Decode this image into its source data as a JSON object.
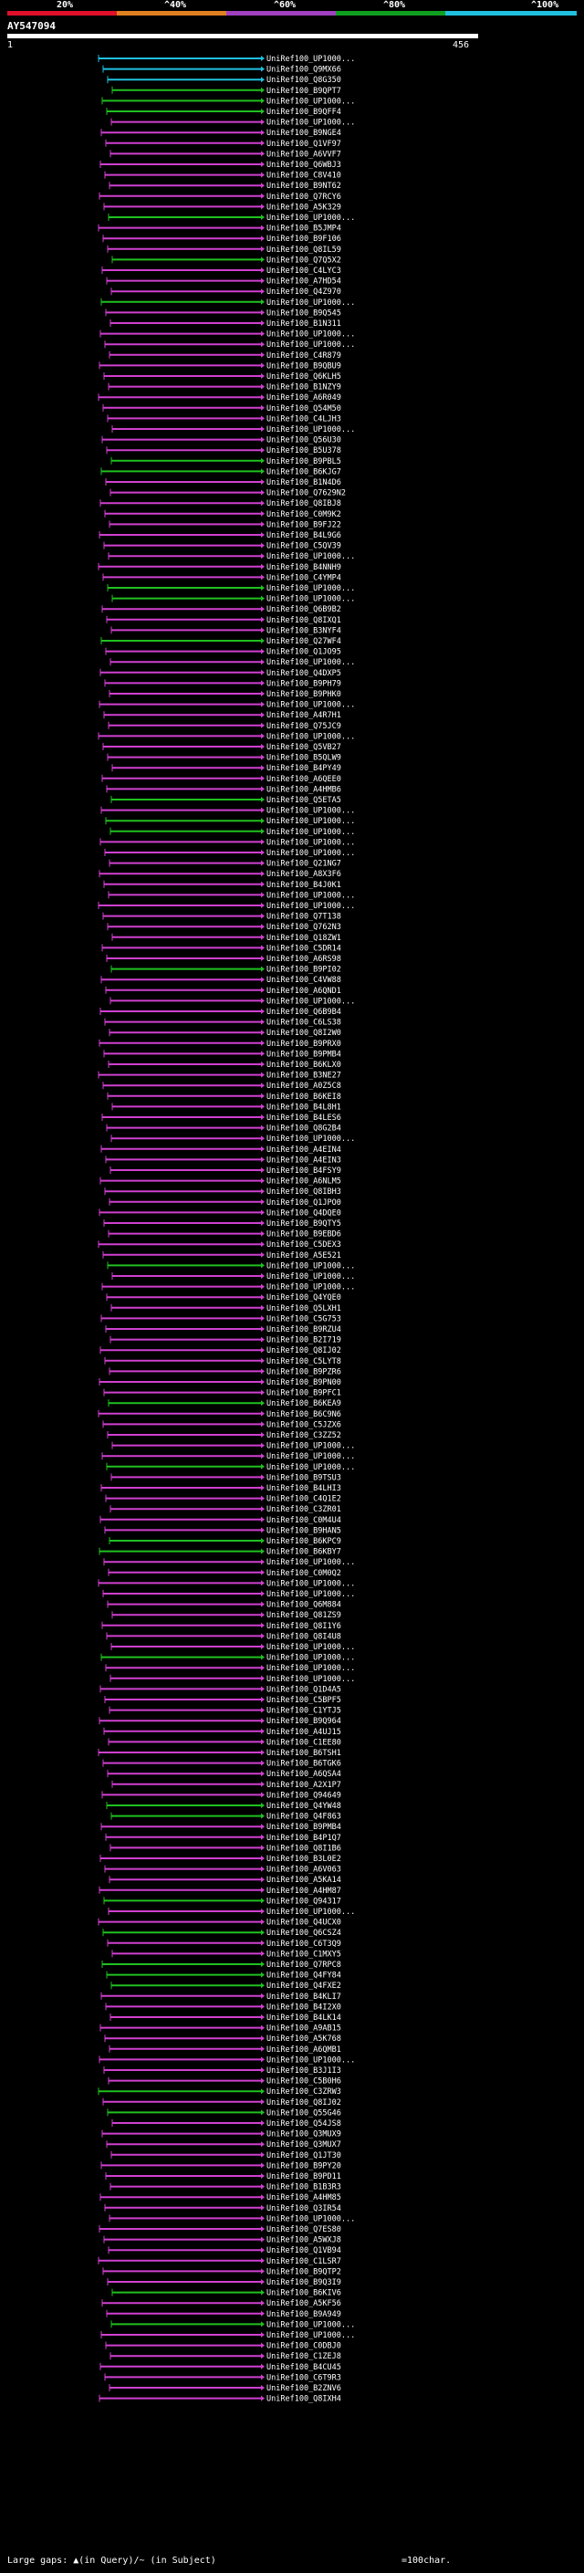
{
  "scale": {
    "ticks": [
      "20%",
      "^40%",
      "^60%",
      "^80%",
      "^100%"
    ],
    "colors": [
      "#e0102a",
      "#e08020",
      "#a040c0",
      "#10a020",
      "#20c0e0"
    ]
  },
  "query": {
    "title": "AY547094",
    "start": "1",
    "end": "456"
  },
  "footer": {
    "note": "Large gaps: ▲(in Query)/~ (in Subject)",
    "legend": "=100char."
  },
  "colors": {
    "green": "#20c020",
    "magenta": "#d040d0",
    "cyan": "#20c0e0"
  },
  "hits": [
    {
      "label": "UniRef100_UP1000...",
      "color": "cyan"
    },
    {
      "label": "UniRef100_Q9MX66",
      "color": "cyan"
    },
    {
      "label": "UniRef100_Q8G350",
      "color": "cyan"
    },
    {
      "label": "UniRef100_B9QPT7",
      "color": "green"
    },
    {
      "label": "UniRef100_UP1000...",
      "color": "green"
    },
    {
      "label": "UniRef100_B9QFF4",
      "color": "green"
    },
    {
      "label": "UniRef100_UP1000...",
      "color": "magenta"
    },
    {
      "label": "UniRef100_B9NGE4",
      "color": "magenta"
    },
    {
      "label": "UniRef100_Q1VF97",
      "color": "magenta"
    },
    {
      "label": "UniRef100_A6VVF7",
      "color": "magenta"
    },
    {
      "label": "UniRef100_Q6WBJ3",
      "color": "magenta"
    },
    {
      "label": "UniRef100_C8V410",
      "color": "magenta"
    },
    {
      "label": "UniRef100_B9NT62",
      "color": "magenta"
    },
    {
      "label": "UniRef100_Q7RCY6",
      "color": "magenta"
    },
    {
      "label": "UniRef100_A5K329",
      "color": "magenta"
    },
    {
      "label": "UniRef100_UP1000...",
      "color": "green"
    },
    {
      "label": "UniRef100_B5JMP4",
      "color": "magenta"
    },
    {
      "label": "UniRef100_B9F106",
      "color": "magenta"
    },
    {
      "label": "UniRef100_Q8IL59",
      "color": "magenta"
    },
    {
      "label": "UniRef100_Q7Q5X2",
      "color": "green"
    },
    {
      "label": "UniRef100_C4LYC3",
      "color": "magenta"
    },
    {
      "label": "UniRef100_A7HD54",
      "color": "magenta"
    },
    {
      "label": "UniRef100_Q4Z970",
      "color": "magenta"
    },
    {
      "label": "UniRef100_UP1000...",
      "color": "green"
    },
    {
      "label": "UniRef100_B9Q545",
      "color": "magenta"
    },
    {
      "label": "UniRef100_B1N311",
      "color": "magenta"
    },
    {
      "label": "UniRef100_UP1000...",
      "color": "magenta"
    },
    {
      "label": "UniRef100_UP1000...",
      "color": "magenta"
    },
    {
      "label": "UniRef100_C4R879",
      "color": "magenta"
    },
    {
      "label": "UniRef100_B9QBU9",
      "color": "magenta"
    },
    {
      "label": "UniRef100_Q6KLH5",
      "color": "magenta"
    },
    {
      "label": "UniRef100_B1NZY9",
      "color": "magenta"
    },
    {
      "label": "UniRef100_A6R049",
      "color": "magenta"
    },
    {
      "label": "UniRef100_Q54M50",
      "color": "magenta"
    },
    {
      "label": "UniRef100_C4LJH3",
      "color": "magenta"
    },
    {
      "label": "UniRef100_UP1000...",
      "color": "magenta"
    },
    {
      "label": "UniRef100_Q56U30",
      "color": "magenta"
    },
    {
      "label": "UniRef100_B5U378",
      "color": "magenta"
    },
    {
      "label": "UniRef100_B9PBL5",
      "color": "green"
    },
    {
      "label": "UniRef100_B6KJG7",
      "color": "green"
    },
    {
      "label": "UniRef100_B1N4D6",
      "color": "magenta"
    },
    {
      "label": "UniRef100_Q7629N2",
      "color": "magenta"
    },
    {
      "label": "UniRef100_Q8IBJ8",
      "color": "magenta"
    },
    {
      "label": "UniRef100_C0M9K2",
      "color": "magenta"
    },
    {
      "label": "UniRef100_B9FJ22",
      "color": "magenta"
    },
    {
      "label": "UniRef100_B4L9G6",
      "color": "magenta"
    },
    {
      "label": "UniRef100_C5QV39",
      "color": "magenta"
    },
    {
      "label": "UniRef100_UP1000...",
      "color": "magenta"
    },
    {
      "label": "UniRef100_B4NNH9",
      "color": "magenta"
    },
    {
      "label": "UniRef100_C4YMP4",
      "color": "magenta"
    },
    {
      "label": "UniRef100_UP1000...",
      "color": "green"
    },
    {
      "label": "UniRef100_UP1000...",
      "color": "green"
    },
    {
      "label": "UniRef100_Q6B9B2",
      "color": "magenta"
    },
    {
      "label": "UniRef100_Q8IXQ1",
      "color": "magenta"
    },
    {
      "label": "UniRef100_B3NYF4",
      "color": "magenta"
    },
    {
      "label": "UniRef100_Q27WF4",
      "color": "green"
    },
    {
      "label": "UniRef100_Q1JO95",
      "color": "magenta"
    },
    {
      "label": "UniRef100_UP1000...",
      "color": "magenta"
    },
    {
      "label": "UniRef100_Q4DXP5",
      "color": "magenta"
    },
    {
      "label": "UniRef100_B9PH79",
      "color": "magenta"
    },
    {
      "label": "UniRef100_B9PHK0",
      "color": "magenta"
    },
    {
      "label": "UniRef100_UP1000...",
      "color": "magenta"
    },
    {
      "label": "UniRef100_A4R7H1",
      "color": "magenta"
    },
    {
      "label": "UniRef100_Q75JC9",
      "color": "magenta"
    },
    {
      "label": "UniRef100_UP1000...",
      "color": "magenta"
    },
    {
      "label": "UniRef100_Q5VB27",
      "color": "magenta"
    },
    {
      "label": "UniRef100_B5QLW9",
      "color": "magenta"
    },
    {
      "label": "UniRef100_B4PY49",
      "color": "magenta"
    },
    {
      "label": "UniRef100_A6QEE0",
      "color": "magenta"
    },
    {
      "label": "UniRef100_A4HMB6",
      "color": "magenta"
    },
    {
      "label": "UniRef100_Q5ETA5",
      "color": "green"
    },
    {
      "label": "UniRef100_UP1000...",
      "color": "magenta"
    },
    {
      "label": "UniRef100_UP1000...",
      "color": "green"
    },
    {
      "label": "UniRef100_UP1000...",
      "color": "green"
    },
    {
      "label": "UniRef100_UP1000...",
      "color": "magenta"
    },
    {
      "label": "UniRef100_UP1000...",
      "color": "magenta"
    },
    {
      "label": "UniRef100_Q21NG7",
      "color": "magenta"
    },
    {
      "label": "UniRef100_A8X3F6",
      "color": "magenta"
    },
    {
      "label": "UniRef100_B4J0K1",
      "color": "magenta"
    },
    {
      "label": "UniRef100_UP1000...",
      "color": "magenta"
    },
    {
      "label": "UniRef100_UP1000...",
      "color": "magenta"
    },
    {
      "label": "UniRef100_Q7T138",
      "color": "magenta"
    },
    {
      "label": "UniRef100_Q762N3",
      "color": "magenta"
    },
    {
      "label": "UniRef100_Q18ZW1",
      "color": "magenta"
    },
    {
      "label": "UniRef100_C5DR14",
      "color": "magenta"
    },
    {
      "label": "UniRef100_A6RS98",
      "color": "magenta"
    },
    {
      "label": "UniRef100_B9PI02",
      "color": "green"
    },
    {
      "label": "UniRef100_C4VW88",
      "color": "magenta"
    },
    {
      "label": "UniRef100_A6QND1",
      "color": "magenta"
    },
    {
      "label": "UniRef100_UP1000...",
      "color": "magenta"
    },
    {
      "label": "UniRef100_Q6B9B4",
      "color": "magenta"
    },
    {
      "label": "UniRef100_C6LS38",
      "color": "magenta"
    },
    {
      "label": "UniRef100_Q8I2W0",
      "color": "magenta"
    },
    {
      "label": "UniRef100_B9PRX0",
      "color": "magenta"
    },
    {
      "label": "UniRef100_B9PMB4",
      "color": "magenta"
    },
    {
      "label": "UniRef100_B6KLX0",
      "color": "magenta"
    },
    {
      "label": "UniRef100_B3NE27",
      "color": "magenta"
    },
    {
      "label": "UniRef100_A0Z5C8",
      "color": "magenta"
    },
    {
      "label": "UniRef100_B6KEI8",
      "color": "magenta"
    },
    {
      "label": "UniRef100_B4L8H1",
      "color": "magenta"
    },
    {
      "label": "UniRef100_B4LES6",
      "color": "magenta"
    },
    {
      "label": "UniRef100_Q8G2B4",
      "color": "magenta"
    },
    {
      "label": "UniRef100_UP1000...",
      "color": "magenta"
    },
    {
      "label": "UniRef100_A4EIN4",
      "color": "magenta"
    },
    {
      "label": "UniRef100_A4EIN3",
      "color": "magenta"
    },
    {
      "label": "UniRef100_B4FSY9",
      "color": "magenta"
    },
    {
      "label": "UniRef100_A6NLM5",
      "color": "magenta"
    },
    {
      "label": "UniRef100_Q8IBH3",
      "color": "magenta"
    },
    {
      "label": "UniRef100_Q1JPO0",
      "color": "magenta"
    },
    {
      "label": "UniRef100_Q4DQE0",
      "color": "magenta"
    },
    {
      "label": "UniRef100_B9QTY5",
      "color": "magenta"
    },
    {
      "label": "UniRef100_B9EBD6",
      "color": "magenta"
    },
    {
      "label": "UniRef100_C5DEX3",
      "color": "magenta"
    },
    {
      "label": "UniRef100_A5E521",
      "color": "magenta"
    },
    {
      "label": "UniRef100_UP1000...",
      "color": "green"
    },
    {
      "label": "UniRef100_UP1000...",
      "color": "magenta"
    },
    {
      "label": "UniRef100_UP1000...",
      "color": "magenta"
    },
    {
      "label": "UniRef100_Q4YQE0",
      "color": "magenta"
    },
    {
      "label": "UniRef100_Q5LXH1",
      "color": "magenta"
    },
    {
      "label": "UniRef100_C5G753",
      "color": "magenta"
    },
    {
      "label": "UniRef100_B9RZU4",
      "color": "magenta"
    },
    {
      "label": "UniRef100_B2I719",
      "color": "magenta"
    },
    {
      "label": "UniRef100_Q8IJ02",
      "color": "magenta"
    },
    {
      "label": "UniRef100_C5LYT8",
      "color": "magenta"
    },
    {
      "label": "UniRef100_B9PZR6",
      "color": "magenta"
    },
    {
      "label": "UniRef100_B9PN00",
      "color": "magenta"
    },
    {
      "label": "UniRef100_B9PFC1",
      "color": "magenta"
    },
    {
      "label": "UniRef100_B6KEA9",
      "color": "green"
    },
    {
      "label": "UniRef100_B6C9N6",
      "color": "magenta"
    },
    {
      "label": "UniRef100_C5JZX6",
      "color": "magenta"
    },
    {
      "label": "UniRef100_C3ZZ52",
      "color": "magenta"
    },
    {
      "label": "UniRef100_UP1000...",
      "color": "magenta"
    },
    {
      "label": "UniRef100_UP1000...",
      "color": "magenta"
    },
    {
      "label": "UniRef100_UP1000...",
      "color": "green"
    },
    {
      "label": "UniRef100_B9TSU3",
      "color": "magenta"
    },
    {
      "label": "UniRef100_B4LHI3",
      "color": "magenta"
    },
    {
      "label": "UniRef100_C4Q1E2",
      "color": "magenta"
    },
    {
      "label": "UniRef100_C3ZR01",
      "color": "magenta"
    },
    {
      "label": "UniRef100_C0M4U4",
      "color": "magenta"
    },
    {
      "label": "UniRef100_B9HAN5",
      "color": "magenta"
    },
    {
      "label": "UniRef100_B6KPC9",
      "color": "green"
    },
    {
      "label": "UniRef100_B6KBY7",
      "color": "green"
    },
    {
      "label": "UniRef100_UP1000...",
      "color": "magenta"
    },
    {
      "label": "UniRef100_C0M0Q2",
      "color": "magenta"
    },
    {
      "label": "UniRef100_UP1000...",
      "color": "magenta"
    },
    {
      "label": "UniRef100_UP1000...",
      "color": "magenta"
    },
    {
      "label": "UniRef100_Q6M884",
      "color": "magenta"
    },
    {
      "label": "UniRef100_Q81ZS9",
      "color": "magenta"
    },
    {
      "label": "UniRef100_Q8I1Y6",
      "color": "magenta"
    },
    {
      "label": "UniRef100_Q8I4U8",
      "color": "magenta"
    },
    {
      "label": "UniRef100_UP1000...",
      "color": "magenta"
    },
    {
      "label": "UniRef100_UP1000...",
      "color": "green"
    },
    {
      "label": "UniRef100_UP1000...",
      "color": "magenta"
    },
    {
      "label": "UniRef100_UP1000...",
      "color": "magenta"
    },
    {
      "label": "UniRef100_Q1D4A5",
      "color": "magenta"
    },
    {
      "label": "UniRef100_C5BPF5",
      "color": "magenta"
    },
    {
      "label": "UniRef100_C1YTJ5",
      "color": "magenta"
    },
    {
      "label": "UniRef100_B9Q964",
      "color": "magenta"
    },
    {
      "label": "UniRef100_A4UJ15",
      "color": "magenta"
    },
    {
      "label": "UniRef100_C1EE80",
      "color": "magenta"
    },
    {
      "label": "UniRef100_B6TSH1",
      "color": "magenta"
    },
    {
      "label": "UniRef100_B6TGK6",
      "color": "magenta"
    },
    {
      "label": "UniRef100_A6QSA4",
      "color": "magenta"
    },
    {
      "label": "UniRef100_A2X1P7",
      "color": "magenta"
    },
    {
      "label": "UniRef100_Q94649",
      "color": "magenta"
    },
    {
      "label": "UniRef100_Q4YW48",
      "color": "green"
    },
    {
      "label": "UniRef100_Q4F863",
      "color": "green"
    },
    {
      "label": "UniRef100_B9PMB4",
      "color": "magenta"
    },
    {
      "label": "UniRef100_B4P1Q7",
      "color": "magenta"
    },
    {
      "label": "UniRef100_Q8I1B6",
      "color": "magenta"
    },
    {
      "label": "UniRef100_B3L0E2",
      "color": "magenta"
    },
    {
      "label": "UniRef100_A6V063",
      "color": "magenta"
    },
    {
      "label": "UniRef100_A5KA14",
      "color": "magenta"
    },
    {
      "label": "UniRef100_A4HM87",
      "color": "magenta"
    },
    {
      "label": "UniRef100_Q94317",
      "color": "green"
    },
    {
      "label": "UniRef100_UP1000...",
      "color": "magenta"
    },
    {
      "label": "UniRef100_Q4UCX0",
      "color": "magenta"
    },
    {
      "label": "UniRef100_Q6CSZ4",
      "color": "green"
    },
    {
      "label": "UniRef100_C6T3Q9",
      "color": "magenta"
    },
    {
      "label": "UniRef100_C1MXY5",
      "color": "magenta"
    },
    {
      "label": "UniRef100_Q7RPC8",
      "color": "green"
    },
    {
      "label": "UniRef100_Q4FY84",
      "color": "green"
    },
    {
      "label": "UniRef100_Q4FXE2",
      "color": "green"
    },
    {
      "label": "UniRef100_B4KLI7",
      "color": "magenta"
    },
    {
      "label": "UniRef100_B4I2X0",
      "color": "magenta"
    },
    {
      "label": "UniRef100_B4LK14",
      "color": "magenta"
    },
    {
      "label": "UniRef100_A9AB15",
      "color": "magenta"
    },
    {
      "label": "UniRef100_A5K768",
      "color": "magenta"
    },
    {
      "label": "UniRef100_A6QMB1",
      "color": "magenta"
    },
    {
      "label": "UniRef100_UP1000...",
      "color": "magenta"
    },
    {
      "label": "UniRef100_B3J1I3",
      "color": "magenta"
    },
    {
      "label": "UniRef100_C5B0H6",
      "color": "magenta"
    },
    {
      "label": "UniRef100_C3ZRW3",
      "color": "green"
    },
    {
      "label": "UniRef100_Q8IJ02",
      "color": "magenta"
    },
    {
      "label": "UniRef100_Q55G46",
      "color": "green"
    },
    {
      "label": "UniRef100_Q54JS8",
      "color": "magenta"
    },
    {
      "label": "UniRef100_Q3MUX9",
      "color": "magenta"
    },
    {
      "label": "UniRef100_Q3MUX7",
      "color": "magenta"
    },
    {
      "label": "UniRef100_Q1JT30",
      "color": "magenta"
    },
    {
      "label": "UniRef100_B9PY20",
      "color": "magenta"
    },
    {
      "label": "UniRef100_B9PD11",
      "color": "magenta"
    },
    {
      "label": "UniRef100_B1B3R3",
      "color": "magenta"
    },
    {
      "label": "UniRef100_A4HM85",
      "color": "magenta"
    },
    {
      "label": "UniRef100_Q3IR54",
      "color": "magenta"
    },
    {
      "label": "UniRef100_UP1000...",
      "color": "magenta"
    },
    {
      "label": "UniRef100_Q7ES80",
      "color": "magenta"
    },
    {
      "label": "UniRef100_A5WXJ8",
      "color": "magenta"
    },
    {
      "label": "UniRef100_Q1VB94",
      "color": "magenta"
    },
    {
      "label": "UniRef100_C1LSR7",
      "color": "magenta"
    },
    {
      "label": "UniRef100_B9QTP2",
      "color": "magenta"
    },
    {
      "label": "UniRef100_B9Q3I9",
      "color": "magenta"
    },
    {
      "label": "UniRef100_B6KIV6",
      "color": "green"
    },
    {
      "label": "UniRef100_A5KF56",
      "color": "magenta"
    },
    {
      "label": "UniRef100_B9A949",
      "color": "magenta"
    },
    {
      "label": "UniRef100_UP1000...",
      "color": "green"
    },
    {
      "label": "UniRef100_UP1000...",
      "color": "magenta"
    },
    {
      "label": "UniRef100_C0DBJ0",
      "color": "magenta"
    },
    {
      "label": "UniRef100_C1ZEJ8",
      "color": "magenta"
    },
    {
      "label": "UniRef100_B4CU45",
      "color": "magenta"
    },
    {
      "label": "UniRef100_C6T9R3",
      "color": "magenta"
    },
    {
      "label": "UniRef100_B2ZNV6",
      "color": "magenta"
    },
    {
      "label": "UniRef100_Q8IXH4",
      "color": "magenta"
    }
  ]
}
